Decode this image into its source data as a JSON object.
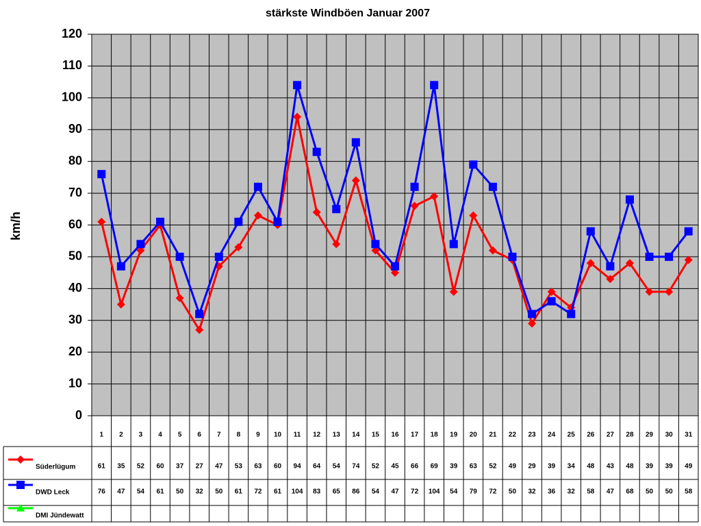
{
  "chart_data": {
    "type": "line",
    "title": "stärkste Windböen Januar 2007",
    "y_label": "km/h",
    "categories": [
      "1",
      "2",
      "3",
      "4",
      "5",
      "6",
      "7",
      "8",
      "9",
      "10",
      "11",
      "12",
      "13",
      "14",
      "15",
      "16",
      "17",
      "18",
      "19",
      "20",
      "21",
      "22",
      "23",
      "24",
      "25",
      "26",
      "27",
      "28",
      "29",
      "30",
      "31"
    ],
    "series": [
      {
        "name": "Süderlügum",
        "color": "#ff0000",
        "marker": "diamond",
        "values": [
          61,
          35,
          52,
          60,
          37,
          27,
          47,
          53,
          63,
          60,
          94,
          64,
          54,
          74,
          52,
          45,
          66,
          69,
          39,
          63,
          52,
          49,
          29,
          39,
          34,
          48,
          43,
          48,
          39,
          39,
          49
        ]
      },
      {
        "name": "DWD Leck",
        "color": "#0000ff",
        "marker": "square",
        "values": [
          76,
          47,
          54,
          61,
          50,
          32,
          50,
          61,
          72,
          61,
          104,
          83,
          65,
          86,
          54,
          47,
          72,
          104,
          54,
          79,
          72,
          50,
          32,
          36,
          32,
          58,
          47,
          68,
          50,
          50,
          58
        ]
      },
      {
        "name": "DMI Jündewatt",
        "color": "#00ff00",
        "marker": "triangle",
        "values": [
          null,
          null,
          null,
          null,
          null,
          null,
          null,
          null,
          null,
          null,
          null,
          null,
          null,
          null,
          null,
          null,
          null,
          null,
          null,
          null,
          null,
          null,
          null,
          null,
          null,
          null,
          null,
          null,
          null,
          null,
          null
        ]
      }
    ],
    "ylim": [
      0,
      120
    ],
    "yticks": [
      0,
      10,
      20,
      30,
      40,
      50,
      60,
      70,
      80,
      90,
      100,
      110,
      120
    ],
    "grid": true,
    "plot_background": "#c0c0c0"
  }
}
